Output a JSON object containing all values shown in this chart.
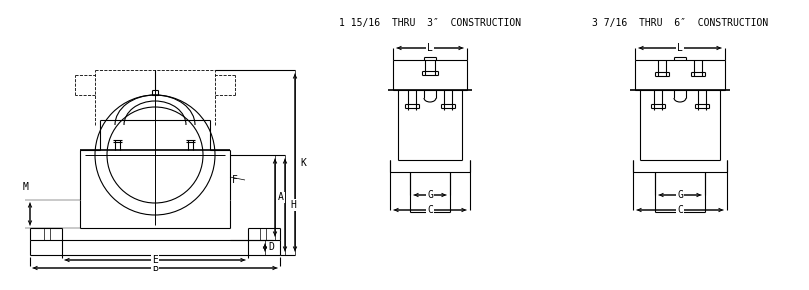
{
  "bg_color": "#ffffff",
  "line_color": "#000000",
  "line_width": 0.8,
  "title1": "1 15/16  THRU  3″  CONSTRUCTION",
  "title2": "3 7/16  THRU  6″  CONSTRUCTION",
  "dim_labels_left": [
    "K",
    "H",
    "A",
    "D",
    "F",
    "M",
    "E",
    "B"
  ],
  "dim_labels_center": [
    "L",
    "G",
    "C"
  ],
  "dim_labels_right": [
    "L",
    "G",
    "C"
  ],
  "font_size": 7,
  "title_font_size": 7
}
